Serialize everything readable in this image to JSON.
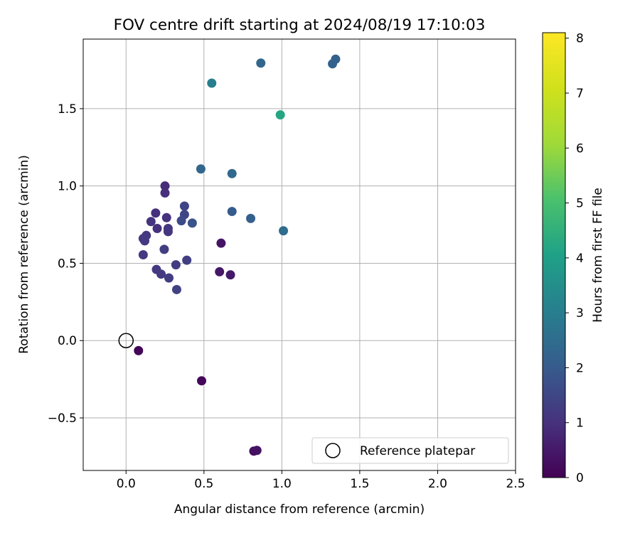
{
  "chart_data": {
    "type": "scatter",
    "title": "FOV centre drift starting at 2024/08/19 17:10:03",
    "xlabel": "Angular distance from reference (arcmin)",
    "ylabel": "Rotation from reference (arcmin)",
    "xlim": [
      -0.275,
      2.5
    ],
    "ylim": [
      -0.84,
      1.95
    ],
    "xticks": [
      0.0,
      0.5,
      1.0,
      1.5,
      2.0,
      2.5
    ],
    "xtick_labels": [
      "0.0",
      "0.5",
      "1.0",
      "1.5",
      "2.0",
      "2.5"
    ],
    "yticks": [
      -0.5,
      0.0,
      0.5,
      1.0,
      1.5
    ],
    "ytick_labels": [
      "−0.5",
      "0.0",
      "0.5",
      "1.0",
      "1.5"
    ],
    "grid": true,
    "colorbar": {
      "label": "Hours from first FF file",
      "colormap": "viridis",
      "range": [
        0,
        8.1
      ],
      "ticks": [
        0,
        1,
        2,
        3,
        4,
        5,
        6,
        7,
        8
      ],
      "tick_labels": [
        "0",
        "1",
        "2",
        "3",
        "4",
        "5",
        "6",
        "7",
        "8"
      ]
    },
    "legend": {
      "position": "lower-right",
      "entries": [
        {
          "label": "Reference platepar",
          "marker": "open-circle"
        }
      ]
    },
    "reference_point": {
      "x": 0.0,
      "y": 0.0
    },
    "points": [
      {
        "x": 0.08,
        "y": -0.065,
        "hours": 0.1
      },
      {
        "x": 0.485,
        "y": -0.26,
        "hours": 0.15
      },
      {
        "x": 0.82,
        "y": -0.715,
        "hours": 0.3
      },
      {
        "x": 0.84,
        "y": -0.71,
        "hours": 0.35
      },
      {
        "x": 0.61,
        "y": 0.63,
        "hours": 0.4
      },
      {
        "x": 0.6,
        "y": 0.445,
        "hours": 0.45
      },
      {
        "x": 0.67,
        "y": 0.425,
        "hours": 0.5
      },
      {
        "x": 0.25,
        "y": 1.0,
        "hours": 0.9
      },
      {
        "x": 0.25,
        "y": 0.955,
        "hours": 0.95
      },
      {
        "x": 0.19,
        "y": 0.825,
        "hours": 1.0
      },
      {
        "x": 0.26,
        "y": 0.795,
        "hours": 1.0
      },
      {
        "x": 0.16,
        "y": 0.77,
        "hours": 1.05
      },
      {
        "x": 0.2,
        "y": 0.725,
        "hours": 1.0
      },
      {
        "x": 0.27,
        "y": 0.725,
        "hours": 1.1
      },
      {
        "x": 0.27,
        "y": 0.705,
        "hours": 1.1
      },
      {
        "x": 0.13,
        "y": 0.68,
        "hours": 1.15
      },
      {
        "x": 0.11,
        "y": 0.66,
        "hours": 1.2
      },
      {
        "x": 0.12,
        "y": 0.645,
        "hours": 1.2
      },
      {
        "x": 0.11,
        "y": 0.555,
        "hours": 1.2
      },
      {
        "x": 0.245,
        "y": 0.59,
        "hours": 1.3
      },
      {
        "x": 0.195,
        "y": 0.46,
        "hours": 1.15
      },
      {
        "x": 0.225,
        "y": 0.43,
        "hours": 1.2
      },
      {
        "x": 0.275,
        "y": 0.405,
        "hours": 1.25
      },
      {
        "x": 0.32,
        "y": 0.49,
        "hours": 1.25
      },
      {
        "x": 0.39,
        "y": 0.52,
        "hours": 1.3
      },
      {
        "x": 0.325,
        "y": 0.33,
        "hours": 1.4
      },
      {
        "x": 0.375,
        "y": 0.87,
        "hours": 1.45
      },
      {
        "x": 0.375,
        "y": 0.815,
        "hours": 1.5
      },
      {
        "x": 0.355,
        "y": 0.775,
        "hours": 1.6
      },
      {
        "x": 0.425,
        "y": 0.76,
        "hours": 1.8
      },
      {
        "x": 0.68,
        "y": 0.835,
        "hours": 2.0
      },
      {
        "x": 0.8,
        "y": 0.79,
        "hours": 2.1
      },
      {
        "x": 1.01,
        "y": 0.71,
        "hours": 2.5
      },
      {
        "x": 0.48,
        "y": 1.11,
        "hours": 2.3
      },
      {
        "x": 0.68,
        "y": 1.08,
        "hours": 2.4
      },
      {
        "x": 0.865,
        "y": 1.795,
        "hours": 2.3
      },
      {
        "x": 1.325,
        "y": 1.79,
        "hours": 2.2
      },
      {
        "x": 1.345,
        "y": 1.82,
        "hours": 2.2
      },
      {
        "x": 0.55,
        "y": 1.665,
        "hours": 3.0
      },
      {
        "x": 0.99,
        "y": 1.46,
        "hours": 4.2
      }
    ]
  }
}
